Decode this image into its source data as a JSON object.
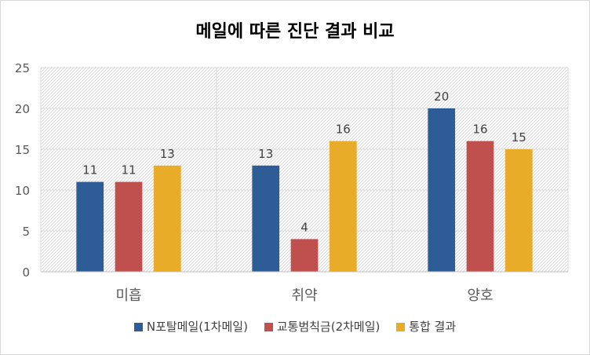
{
  "chart_data": {
    "type": "bar",
    "title": "메일에 따른 진단 결과 비교",
    "categories": [
      "미흡",
      "취약",
      "양호"
    ],
    "series": [
      {
        "name": "N포탈메일(1차메일)",
        "values": [
          11,
          13,
          20
        ],
        "color": "#2e5c96"
      },
      {
        "name": "교통범칙금(2차메일)",
        "values": [
          11,
          4,
          16
        ],
        "color": "#c0504d"
      },
      {
        "name": "통합 결과",
        "values": [
          13,
          16,
          15
        ],
        "color": "#e8ac28"
      }
    ],
    "ylim": [
      0,
      25
    ],
    "yticks": [
      0,
      5,
      10,
      15,
      20,
      25
    ],
    "grid": true,
    "legend": "bottom"
  }
}
